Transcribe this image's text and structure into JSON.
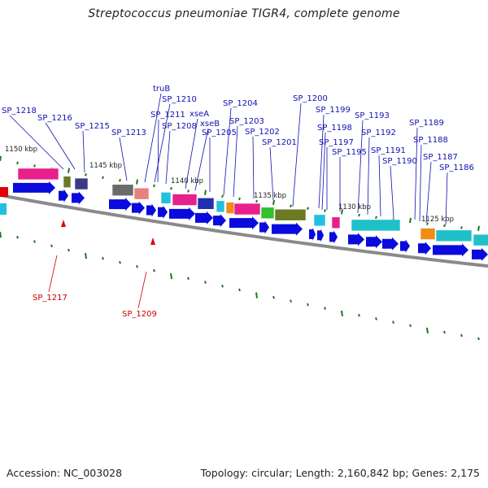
{
  "title": "Streptococcus pneumoniae TIGR4, complete genome",
  "footer": {
    "accession": "Accession: NC_003028",
    "summary": "Topology: circular; Length: 2,160,842 bp; Genes: 2,175"
  },
  "scale_labels": [
    "1150 kbp",
    "1145 kbp",
    "1140 kbp",
    "1135 kbp",
    "1130 kbp",
    "1125 kbp"
  ],
  "gene_labels_top": [
    "SP_1218",
    "SP_1216",
    "SP_1215",
    "SP_1213",
    "truB",
    "SP_1210",
    "SP_1211",
    "SP_1208",
    "xseA",
    "xseB",
    "SP_1205",
    "SP_1204",
    "SP_1203",
    "SP_1202",
    "SP_1201",
    "SP_1200",
    "SP_1199",
    "SP_1198",
    "SP_1197",
    "SP_1195",
    "SP_1193",
    "SP_1192",
    "SP_1191",
    "SP_1190",
    "SP_1189",
    "SP_1188",
    "SP_1187",
    "SP_1186"
  ],
  "gene_labels_bottom": [
    "SP_1217",
    "SP_1209"
  ],
  "colors": {
    "forward_arrow": "#0a0adc",
    "reverse_arrow": "#e00000",
    "label_blue": "#1010b0",
    "label_red": "#cc0000",
    "backbone": "#8a8a8a",
    "tick_green": "#1a7a1a"
  }
}
